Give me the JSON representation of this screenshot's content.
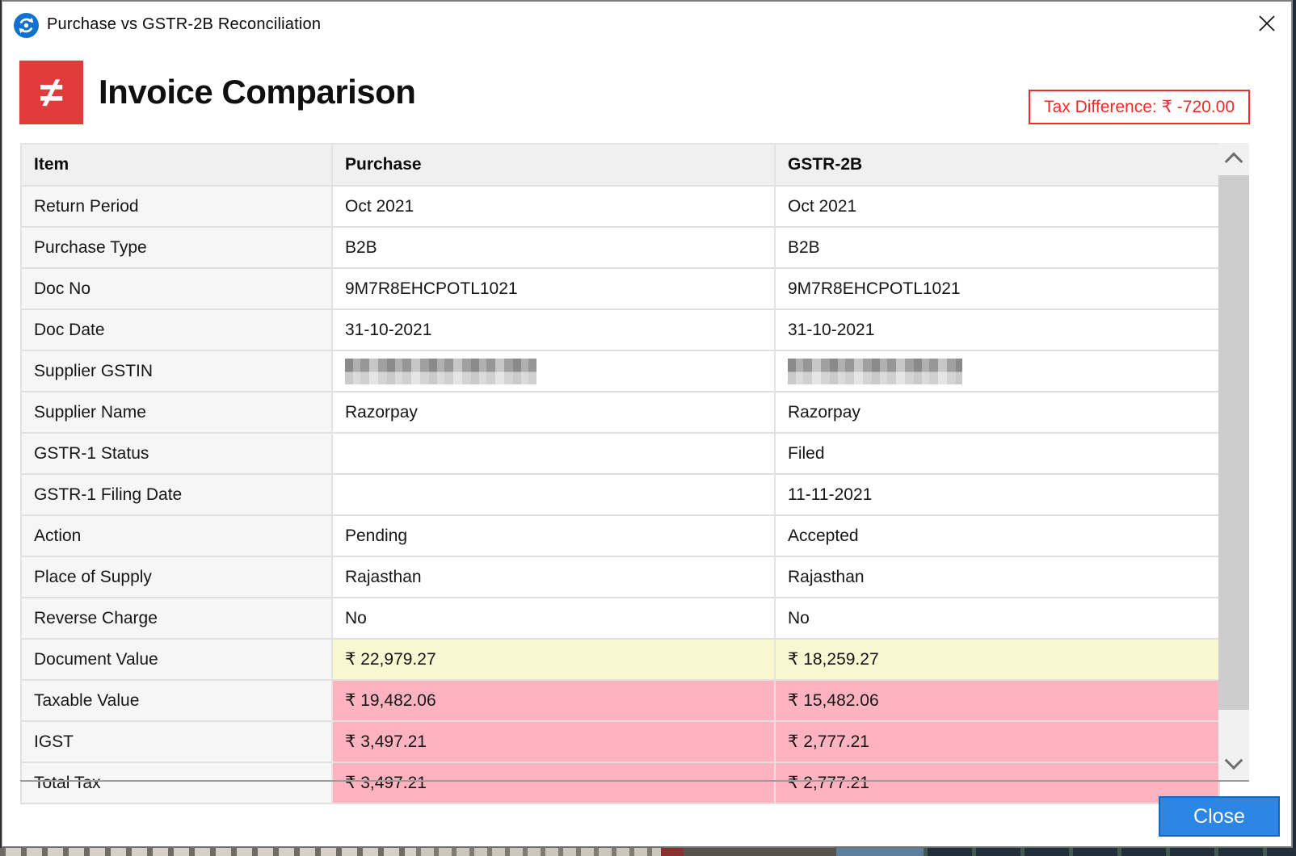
{
  "window": {
    "title": "Purchase vs GSTR-2B Reconciliation"
  },
  "header": {
    "icon_glyph": "≠",
    "title": "Invoice Comparison",
    "tax_difference_label": "Tax Difference: ₹ -720.00"
  },
  "table": {
    "columns": [
      "Item",
      "Purchase",
      "GSTR-2B"
    ],
    "rows": [
      {
        "item": "Return Period",
        "purchase": "Oct 2021",
        "gstr2b": "Oct 2021",
        "highlight": "none"
      },
      {
        "item": "Purchase Type",
        "purchase": "B2B",
        "gstr2b": "B2B",
        "highlight": "none"
      },
      {
        "item": "Doc No",
        "purchase": "9M7R8EHCPOTL1021",
        "gstr2b": "9M7R8EHCPOTL1021",
        "highlight": "none"
      },
      {
        "item": "Doc Date",
        "purchase": "31-10-2021",
        "gstr2b": "31-10-2021",
        "highlight": "none"
      },
      {
        "item": "Supplier GSTIN",
        "purchase": "",
        "gstr2b": "",
        "highlight": "none",
        "redacted": true
      },
      {
        "item": "Supplier Name",
        "purchase": "Razorpay",
        "gstr2b": "Razorpay",
        "highlight": "none"
      },
      {
        "item": "GSTR-1 Status",
        "purchase": "",
        "gstr2b": "Filed",
        "highlight": "none"
      },
      {
        "item": "GSTR-1 Filing Date",
        "purchase": "",
        "gstr2b": "11-11-2021",
        "highlight": "none"
      },
      {
        "item": "Action",
        "purchase": "Pending",
        "gstr2b": "Accepted",
        "highlight": "none"
      },
      {
        "item": "Place of Supply",
        "purchase": "Rajasthan",
        "gstr2b": "Rajasthan",
        "highlight": "none"
      },
      {
        "item": "Reverse Charge",
        "purchase": "No",
        "gstr2b": "No",
        "highlight": "none"
      },
      {
        "item": "Document Value",
        "purchase": "₹ 22,979.27",
        "gstr2b": "₹ 18,259.27",
        "highlight": "yellow"
      },
      {
        "item": "Taxable Value",
        "purchase": "₹ 19,482.06",
        "gstr2b": "₹ 15,482.06",
        "highlight": "pink"
      },
      {
        "item": "IGST",
        "purchase": "₹ 3,497.21",
        "gstr2b": "₹ 2,777.21",
        "highlight": "pink"
      },
      {
        "item": "Total Tax",
        "purchase": "₹ 3,497.21",
        "gstr2b": "₹ 2,777.21",
        "highlight": "pink",
        "partially_visible": true
      }
    ]
  },
  "footer": {
    "close_label": "Close"
  },
  "colors": {
    "accent_red": "#e13c3c",
    "alert_red": "#f42929",
    "highlight_yellow": "#f7f7d0",
    "highlight_pink": "#ffb3c1",
    "primary_blue": "#2b87e3"
  }
}
